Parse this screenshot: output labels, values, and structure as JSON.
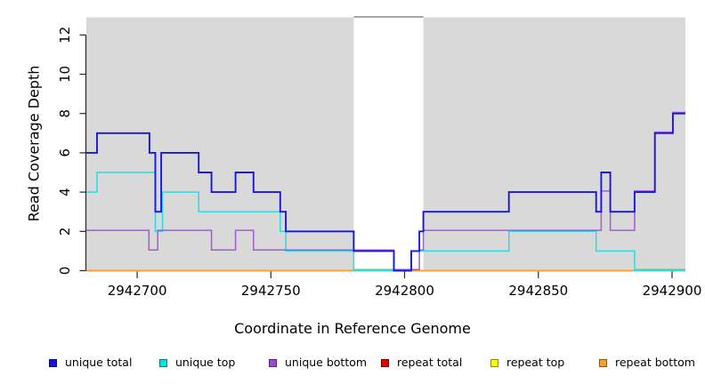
{
  "chart_data": {
    "type": "line",
    "step": true,
    "title": "",
    "xlabel": "Coordinate in Reference Genome",
    "ylabel": "Read Coverage Depth",
    "xlim": [
      2942681,
      2942905
    ],
    "ylim": [
      0,
      13
    ],
    "x_ticks": [
      2942700,
      2942750,
      2942800,
      2942850,
      2942900
    ],
    "y_ticks": [
      0,
      2,
      4,
      6,
      8,
      10,
      12
    ],
    "grid": false,
    "legend_position": "bottom",
    "plot_background": "#d9d9d9",
    "gap_region": {
      "from": 2942781,
      "to": 2942807
    },
    "gap_top_edge_color": "#8a8a8a",
    "zero_overlap_color": "#76c476",
    "zero_overlap_segments": [
      {
        "from": 2942781,
        "to": 2942796
      },
      {
        "from": 2942886,
        "to": 2942905
      }
    ],
    "series": [
      {
        "name": "unique total",
        "color": "#1818dd",
        "start": 6,
        "breaks": [
          [
            2942685,
            7
          ],
          [
            2942704.6,
            6
          ],
          [
            2942706.8,
            3
          ],
          [
            2942709,
            6
          ],
          [
            2942723,
            5
          ],
          [
            2942727.8,
            4
          ],
          [
            2942736.8,
            5
          ],
          [
            2942743.5,
            4
          ],
          [
            2942753.5,
            3
          ],
          [
            2942755.6,
            2
          ],
          [
            2942781,
            1
          ],
          [
            2942796,
            0
          ],
          [
            2942802.5,
            1
          ],
          [
            2942805.5,
            2
          ],
          [
            2942807,
            3
          ],
          [
            2942839,
            4
          ],
          [
            2942871.6,
            3
          ],
          [
            2942873.5,
            5
          ],
          [
            2942876.9,
            3
          ],
          [
            2942886,
            4
          ],
          [
            2942893.6,
            7
          ],
          [
            2942900.3,
            8
          ]
        ]
      },
      {
        "name": "unique top",
        "color": "#2fd8e2",
        "start": 4,
        "breaks": [
          [
            2942685,
            5
          ],
          [
            2942706.8,
            2
          ],
          [
            2942709.5,
            4
          ],
          [
            2942723,
            3
          ],
          [
            2942753.5,
            2
          ],
          [
            2942755.6,
            1
          ],
          [
            2942781,
            0
          ],
          [
            2942802.5,
            1
          ],
          [
            2942839,
            2
          ],
          [
            2942871.6,
            1
          ],
          [
            2942886,
            0
          ]
        ]
      },
      {
        "name": "unique bottom",
        "color": "#a55ad5",
        "start": 2,
        "breaks": [
          [
            2942704.4,
            1
          ],
          [
            2942707.7,
            2
          ],
          [
            2942727.8,
            1
          ],
          [
            2942736.8,
            2
          ],
          [
            2942743.5,
            1
          ],
          [
            2942796,
            0
          ],
          [
            2942805.5,
            1
          ],
          [
            2942807,
            2
          ],
          [
            2942873.5,
            4
          ],
          [
            2942876.9,
            2
          ],
          [
            2942886,
            4
          ],
          [
            2942893.6,
            7
          ],
          [
            2942900.3,
            8
          ]
        ]
      },
      {
        "name": "repeat total",
        "color": "#e32020",
        "start": 0,
        "breaks": []
      },
      {
        "name": "repeat top",
        "color": "#f5f500",
        "start": 0,
        "breaks": []
      },
      {
        "name": "repeat bottom",
        "color": "#ff9e2c",
        "start": 0,
        "breaks": []
      }
    ],
    "legend": [
      {
        "label": "unique total",
        "color": "#1414dd"
      },
      {
        "label": "unique top",
        "color": "#00e3e8"
      },
      {
        "label": "unique bottom",
        "color": "#9f46d8"
      },
      {
        "label": "repeat total",
        "color": "#e60000"
      },
      {
        "label": "repeat top",
        "color": "#ffff00"
      },
      {
        "label": "repeat bottom",
        "color": "#ff9e26"
      }
    ]
  }
}
